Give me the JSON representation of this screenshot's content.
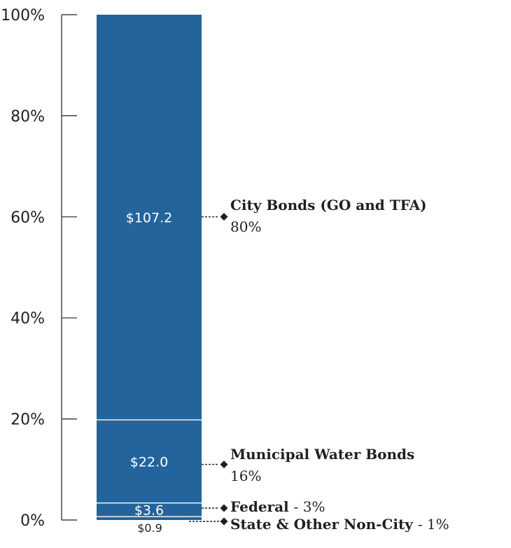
{
  "chart_data": {
    "type": "bar",
    "stacked": true,
    "normalized": true,
    "title": "",
    "xlabel": "",
    "ylabel": "",
    "ylim": [
      0,
      100
    ],
    "yticks": [
      "0%",
      "20%",
      "40%",
      "60%",
      "80%",
      "100%"
    ],
    "grid": false,
    "colors": {
      "bar": "#23649d",
      "divider": "#ffffff",
      "axis": "#231f20",
      "text": "#231f20"
    },
    "series": [
      {
        "name": "City Bonds (GO and TFA)",
        "value": 107.2,
        "value_label": "$107.2",
        "percent": 80,
        "percent_label": "80%"
      },
      {
        "name": "Municipal Water Bonds",
        "value": 22.0,
        "value_label": "$22.0",
        "percent": 16,
        "percent_label": "16%"
      },
      {
        "name": "Federal",
        "value": 3.6,
        "value_label": "$3.6",
        "percent": 3,
        "percent_label": "- 3%"
      },
      {
        "name": "State & Other Non-City",
        "value": 0.9,
        "value_label": "$0.9",
        "percent": 1,
        "percent_label": "- 1%"
      }
    ]
  }
}
